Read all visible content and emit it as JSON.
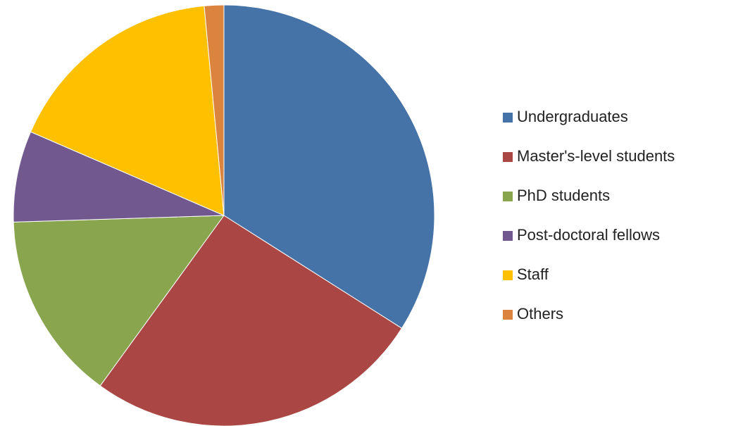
{
  "chart_data": {
    "type": "pie",
    "categories": [
      "Undergraduates",
      "Master's-level students",
      "PhD students",
      "Post-doctoral fellows",
      "Staff",
      "Others"
    ],
    "values": [
      34,
      26,
      14.5,
      7,
      17,
      1.5
    ],
    "colors": [
      "#4572a7",
      "#aa4643",
      "#89a54e",
      "#71588f",
      "#ffc000",
      "#db843d"
    ],
    "legend": "right"
  }
}
